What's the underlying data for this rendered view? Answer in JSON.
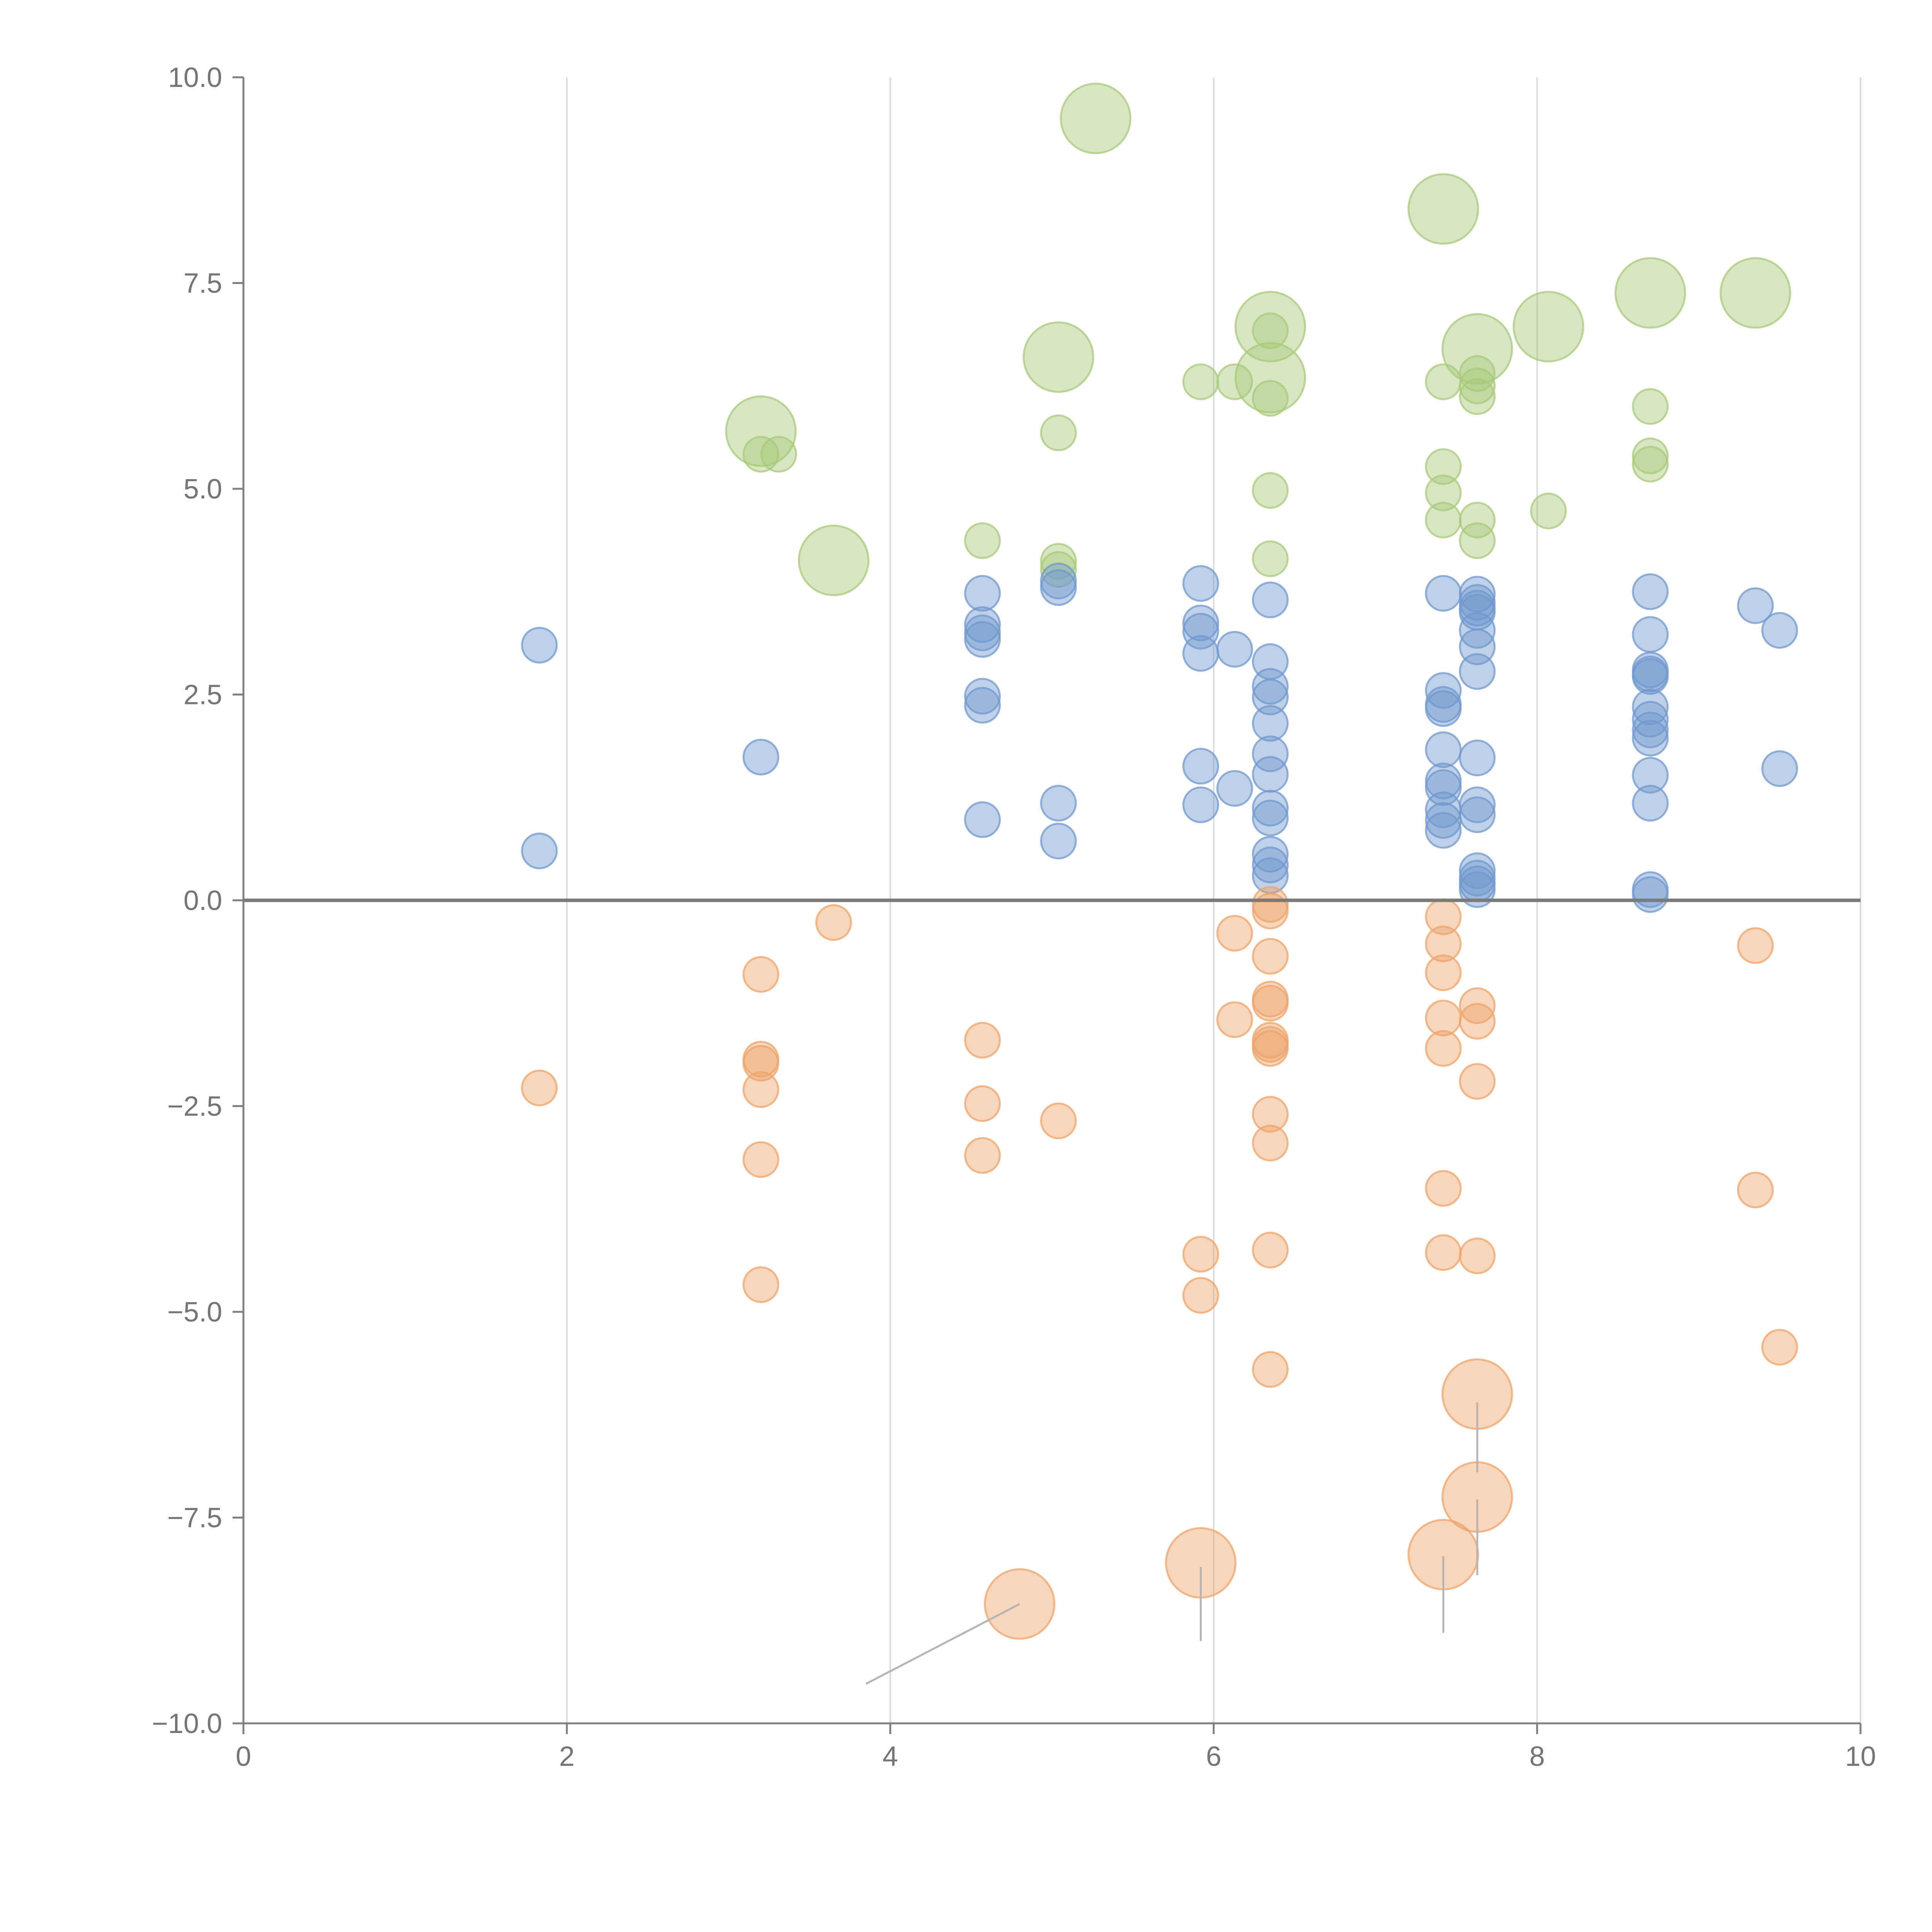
{
  "chart_data": {
    "type": "scatter",
    "title": "",
    "xlabel": "",
    "ylabel": "",
    "xlim": [
      0,
      10
    ],
    "ylim": [
      -10,
      10
    ],
    "xticks": [
      "0",
      "2",
      "4",
      "6",
      "8",
      "10"
    ],
    "yticks": [
      "10.0",
      "7.5",
      "5.0",
      "2.5",
      "0.0",
      "−2.5",
      "−5.0",
      "−7.5",
      "−10.0"
    ],
    "xtick_values": [
      0,
      2,
      4,
      6,
      8,
      10
    ],
    "ytick_values": [
      10,
      7.5,
      5,
      2.5,
      0,
      -2.5,
      -5,
      -7.5,
      -10
    ],
    "grid": "vertical",
    "reference_line_y": 0,
    "colors": {
      "green": "#a9c97a",
      "blue": "#7098cf",
      "orange": "#eda46b",
      "axis": "#808080",
      "grid": "#dcdcdc"
    },
    "series": [
      {
        "name": "green",
        "color": "#a9c97a",
        "points": [
          [
            5.27,
            9.5,
            1
          ],
          [
            7.42,
            8.4,
            1
          ],
          [
            8.7,
            7.38,
            1
          ],
          [
            9.35,
            7.38,
            1
          ],
          [
            8.07,
            6.97,
            1
          ],
          [
            6.35,
            6.97,
            1
          ],
          [
            7.63,
            6.7,
            1
          ],
          [
            5.04,
            6.6,
            1
          ],
          [
            6.35,
            6.35,
            1
          ],
          [
            3.2,
            5.7,
            1
          ],
          [
            3.65,
            4.13,
            1
          ],
          [
            6.35,
            6.92,
            0
          ],
          [
            5.92,
            6.3,
            0
          ],
          [
            6.13,
            6.3,
            0
          ],
          [
            7.42,
            6.3,
            0
          ],
          [
            7.63,
            6.4,
            0
          ],
          [
            7.63,
            6.25,
            0
          ],
          [
            7.63,
            6.12,
            0
          ],
          [
            6.35,
            6.1,
            0
          ],
          [
            8.7,
            6.0,
            0
          ],
          [
            5.04,
            5.68,
            0
          ],
          [
            3.2,
            5.42,
            0
          ],
          [
            3.31,
            5.42,
            0
          ],
          [
            8.7,
            5.4,
            0
          ],
          [
            8.7,
            5.3,
            0
          ],
          [
            7.42,
            5.27,
            0
          ],
          [
            6.35,
            4.98,
            0
          ],
          [
            7.42,
            4.95,
            0
          ],
          [
            8.07,
            4.73,
            0
          ],
          [
            7.42,
            4.62,
            0
          ],
          [
            7.63,
            4.62,
            0
          ],
          [
            4.57,
            4.37,
            0
          ],
          [
            7.63,
            4.37,
            0
          ],
          [
            6.35,
            4.15,
            0
          ],
          [
            5.04,
            4.12,
            0
          ],
          [
            5.04,
            4.02,
            0
          ]
        ]
      },
      {
        "name": "blue",
        "color": "#7098cf",
        "points": [
          [
            1.83,
            3.1
          ],
          [
            1.83,
            0.6
          ],
          [
            3.2,
            1.74
          ],
          [
            4.57,
            3.73
          ],
          [
            4.57,
            3.35
          ],
          [
            4.57,
            3.25
          ],
          [
            4.57,
            3.17
          ],
          [
            4.57,
            2.48
          ],
          [
            4.57,
            2.37
          ],
          [
            4.57,
            0.98
          ],
          [
            5.04,
            3.88
          ],
          [
            5.04,
            3.8
          ],
          [
            5.04,
            1.18
          ],
          [
            5.04,
            0.72
          ],
          [
            5.92,
            3.85
          ],
          [
            5.92,
            3.37
          ],
          [
            5.92,
            3.27
          ],
          [
            5.92,
            3.0
          ],
          [
            5.92,
            1.63
          ],
          [
            5.92,
            1.16
          ],
          [
            6.13,
            3.05
          ],
          [
            6.13,
            1.36
          ],
          [
            6.35,
            3.65
          ],
          [
            6.35,
            2.9
          ],
          [
            6.35,
            2.6
          ],
          [
            6.35,
            2.47
          ],
          [
            6.35,
            2.15
          ],
          [
            6.35,
            1.78
          ],
          [
            6.35,
            1.53
          ],
          [
            6.35,
            1.12
          ],
          [
            6.35,
            1.0
          ],
          [
            6.35,
            0.56
          ],
          [
            6.35,
            0.43
          ],
          [
            6.35,
            0.3
          ],
          [
            7.42,
            3.73
          ],
          [
            7.42,
            2.55
          ],
          [
            7.42,
            2.38
          ],
          [
            7.42,
            2.33
          ],
          [
            7.42,
            1.83
          ],
          [
            7.42,
            1.45
          ],
          [
            7.42,
            1.37
          ],
          [
            7.42,
            1.1
          ],
          [
            7.42,
            0.97
          ],
          [
            7.42,
            0.85
          ],
          [
            7.63,
            3.72
          ],
          [
            7.63,
            3.62
          ],
          [
            7.63,
            3.55
          ],
          [
            7.63,
            3.5
          ],
          [
            7.63,
            3.28
          ],
          [
            7.63,
            3.08
          ],
          [
            7.63,
            2.78
          ],
          [
            7.63,
            1.73
          ],
          [
            7.63,
            1.16
          ],
          [
            7.63,
            1.04
          ],
          [
            7.63,
            0.36
          ],
          [
            7.63,
            0.27
          ],
          [
            7.63,
            0.2
          ],
          [
            7.63,
            0.13
          ],
          [
            8.7,
            3.75
          ],
          [
            8.7,
            3.23
          ],
          [
            8.7,
            2.8
          ],
          [
            8.7,
            2.75
          ],
          [
            8.7,
            2.72
          ],
          [
            8.7,
            2.35
          ],
          [
            8.7,
            2.2
          ],
          [
            8.7,
            2.07
          ],
          [
            8.7,
            1.97
          ],
          [
            8.7,
            1.52
          ],
          [
            8.7,
            1.18
          ],
          [
            8.7,
            0.13
          ],
          [
            8.7,
            0.07
          ],
          [
            9.35,
            3.58
          ],
          [
            9.5,
            3.28
          ],
          [
            9.5,
            1.6
          ]
        ]
      },
      {
        "name": "orange",
        "color": "#eda46b",
        "points": [
          [
            4.8,
            -8.55,
            1
          ],
          [
            5.92,
            -8.05,
            1
          ],
          [
            7.42,
            -7.95,
            1
          ],
          [
            7.63,
            -7.25,
            1
          ],
          [
            7.63,
            -6.0,
            1
          ],
          [
            1.83,
            -2.28,
            0
          ],
          [
            3.2,
            -0.9,
            0
          ],
          [
            3.2,
            -1.93,
            0
          ],
          [
            3.2,
            -1.98,
            0
          ],
          [
            3.2,
            -2.3,
            0
          ],
          [
            3.2,
            -3.15,
            0
          ],
          [
            3.2,
            -4.67,
            0
          ],
          [
            3.65,
            -0.27,
            0
          ],
          [
            4.57,
            -1.7,
            0
          ],
          [
            4.57,
            -2.47,
            0
          ],
          [
            4.57,
            -3.1,
            0
          ],
          [
            5.04,
            -2.68,
            0
          ],
          [
            5.92,
            -4.3,
            0
          ],
          [
            5.92,
            -4.8,
            0
          ],
          [
            6.13,
            -0.4,
            0
          ],
          [
            6.13,
            -1.45,
            0
          ],
          [
            6.35,
            -0.05,
            0
          ],
          [
            6.35,
            -0.13,
            0
          ],
          [
            6.35,
            -0.68,
            0
          ],
          [
            6.35,
            -1.2,
            0
          ],
          [
            6.35,
            -1.25,
            0
          ],
          [
            6.35,
            -1.7,
            0
          ],
          [
            6.35,
            -1.75,
            0
          ],
          [
            6.35,
            -1.8,
            0
          ],
          [
            6.35,
            -2.6,
            0
          ],
          [
            6.35,
            -2.95,
            0
          ],
          [
            6.35,
            -4.25,
            0
          ],
          [
            6.35,
            -5.7,
            0
          ],
          [
            7.42,
            -0.2,
            0
          ],
          [
            7.42,
            -0.53,
            0
          ],
          [
            7.42,
            -0.88,
            0
          ],
          [
            7.42,
            -1.43,
            0
          ],
          [
            7.42,
            -1.8,
            0
          ],
          [
            7.42,
            -3.5,
            0
          ],
          [
            7.42,
            -4.28,
            0
          ],
          [
            7.63,
            -1.28,
            0
          ],
          [
            7.63,
            -1.47,
            0
          ],
          [
            7.63,
            -2.2,
            0
          ],
          [
            7.63,
            -4.32,
            0
          ],
          [
            9.35,
            -0.55,
            0
          ],
          [
            9.35,
            -3.52,
            0
          ],
          [
            9.5,
            -5.43,
            0
          ]
        ]
      }
    ],
    "leader_lines": [
      [
        [
          4.8,
          -8.55
        ],
        [
          3.85,
          -9.52
        ]
      ],
      [
        [
          5.92,
          -8.1
        ],
        [
          5.92,
          -9.0
        ]
      ],
      [
        [
          7.42,
          -7.97
        ],
        [
          7.42,
          -8.9
        ]
      ],
      [
        [
          7.63,
          -6.1
        ],
        [
          7.63,
          -6.95
        ]
      ],
      [
        [
          7.63,
          -7.28
        ],
        [
          7.63,
          -8.2
        ]
      ]
    ]
  }
}
